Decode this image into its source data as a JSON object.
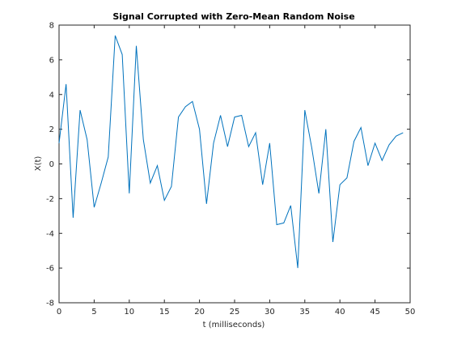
{
  "chart_data": {
    "type": "line",
    "title": "Signal Corrupted with Zero-Mean Random Noise",
    "xlabel": "t (milliseconds)",
    "ylabel": "X(t)",
    "xlim": [
      0,
      50
    ],
    "ylim": [
      -8,
      8
    ],
    "xticks": [
      0,
      5,
      10,
      15,
      20,
      25,
      30,
      35,
      40,
      45,
      50
    ],
    "yticks": [
      -8,
      -6,
      -4,
      -2,
      0,
      2,
      4,
      6,
      8
    ],
    "grid": false,
    "legend": "none",
    "line_color": "#0072bd",
    "series": [
      {
        "x": [
          0,
          1,
          2,
          3,
          4,
          5,
          6,
          7,
          8,
          9,
          10,
          11,
          12,
          13,
          14,
          15,
          16,
          17,
          18,
          19,
          20,
          21,
          22,
          23,
          24,
          25,
          26,
          27,
          28,
          29,
          30,
          31,
          32,
          33,
          34,
          35,
          36,
          37,
          38,
          39,
          40,
          41,
          42,
          43,
          44,
          45,
          46,
          47,
          48,
          49
        ],
        "values": [
          1.2,
          4.6,
          -3.1,
          3.1,
          1.4,
          -2.5,
          -1.1,
          0.4,
          7.4,
          6.3,
          -1.7,
          6.8,
          1.4,
          -1.1,
          -0.1,
          -2.1,
          -1.3,
          2.7,
          3.3,
          3.6,
          2.0,
          -2.3,
          1.2,
          2.8,
          1.0,
          2.7,
          2.8,
          1.0,
          1.8,
          -1.2,
          1.2,
          -3.5,
          -3.4,
          -2.4,
          -6.0,
          3.1,
          0.9,
          -1.7,
          2.0,
          -4.5,
          -1.2,
          -0.8,
          1.3,
          2.1,
          -0.1,
          1.2,
          0.2,
          1.1,
          1.6,
          1.8
        ]
      }
    ]
  }
}
